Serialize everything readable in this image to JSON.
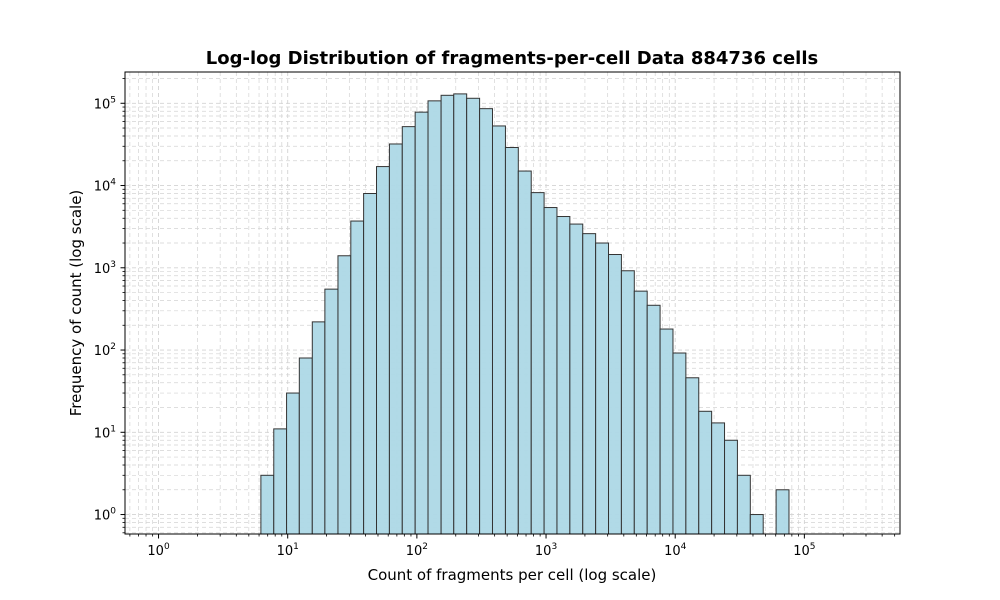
{
  "chart_data": {
    "type": "bar",
    "title": "Log-log Distribution of fragments-per-cell Data 884736 cells",
    "xlabel": "Count of fragments per cell (log scale)",
    "ylabel": "Frequency of count (log scale)",
    "x_scale": "log",
    "y_scale": "log",
    "xlim": [
      0.55,
      550000
    ],
    "ylim": [
      0.58,
      240000
    ],
    "grid": true,
    "x_ticks": [
      {
        "value": 1,
        "base": "10",
        "exp": "0"
      },
      {
        "value": 10,
        "base": "10",
        "exp": "1"
      },
      {
        "value": 100,
        "base": "10",
        "exp": "2"
      },
      {
        "value": 1000,
        "base": "10",
        "exp": "3"
      },
      {
        "value": 10000,
        "base": "10",
        "exp": "4"
      },
      {
        "value": 100000,
        "base": "10",
        "exp": "5"
      }
    ],
    "y_ticks": [
      {
        "value": 1,
        "base": "10",
        "exp": "0"
      },
      {
        "value": 10,
        "base": "10",
        "exp": "1"
      },
      {
        "value": 100,
        "base": "10",
        "exp": "2"
      },
      {
        "value": 1000,
        "base": "10",
        "exp": "3"
      },
      {
        "value": 10000,
        "base": "10",
        "exp": "4"
      },
      {
        "value": 100000,
        "base": "10",
        "exp": "5"
      }
    ],
    "bar_color": "#add8e6",
    "edge_color": "#333333",
    "bins": [
      {
        "x0": 6.2,
        "x1": 7.8,
        "count": 3
      },
      {
        "x0": 7.8,
        "x1": 9.8,
        "count": 11
      },
      {
        "x0": 9.8,
        "x1": 12.3,
        "count": 30
      },
      {
        "x0": 12.3,
        "x1": 15.5,
        "count": 80
      },
      {
        "x0": 15.5,
        "x1": 19.4,
        "count": 220
      },
      {
        "x0": 19.4,
        "x1": 24.5,
        "count": 550
      },
      {
        "x0": 24.5,
        "x1": 30.8,
        "count": 1400
      },
      {
        "x0": 30.8,
        "x1": 38.7,
        "count": 3700
      },
      {
        "x0": 38.7,
        "x1": 48.7,
        "count": 8000
      },
      {
        "x0": 48.7,
        "x1": 61.3,
        "count": 17000
      },
      {
        "x0": 61.3,
        "x1": 77.1,
        "count": 32000
      },
      {
        "x0": 77.1,
        "x1": 97.0,
        "count": 52000
      },
      {
        "x0": 97.0,
        "x1": 122,
        "count": 78000
      },
      {
        "x0": 122,
        "x1": 154,
        "count": 107000
      },
      {
        "x0": 154,
        "x1": 193,
        "count": 125000
      },
      {
        "x0": 193,
        "x1": 243,
        "count": 130000
      },
      {
        "x0": 243,
        "x1": 306,
        "count": 115000
      },
      {
        "x0": 306,
        "x1": 385,
        "count": 86000
      },
      {
        "x0": 385,
        "x1": 485,
        "count": 53000
      },
      {
        "x0": 485,
        "x1": 610,
        "count": 29000
      },
      {
        "x0": 610,
        "x1": 768,
        "count": 15000
      },
      {
        "x0": 768,
        "x1": 966,
        "count": 8200
      },
      {
        "x0": 966,
        "x1": 1215,
        "count": 5400
      },
      {
        "x0": 1215,
        "x1": 1529,
        "count": 4200
      },
      {
        "x0": 1529,
        "x1": 1924,
        "count": 3400
      },
      {
        "x0": 1924,
        "x1": 2421,
        "count": 2600
      },
      {
        "x0": 2421,
        "x1": 3046,
        "count": 2000
      },
      {
        "x0": 3046,
        "x1": 3833,
        "count": 1450
      },
      {
        "x0": 3833,
        "x1": 4823,
        "count": 920
      },
      {
        "x0": 4823,
        "x1": 6069,
        "count": 520
      },
      {
        "x0": 6069,
        "x1": 7637,
        "count": 350
      },
      {
        "x0": 7637,
        "x1": 9610,
        "count": 180
      },
      {
        "x0": 9610,
        "x1": 12093,
        "count": 92
      },
      {
        "x0": 12093,
        "x1": 15217,
        "count": 46
      },
      {
        "x0": 15217,
        "x1": 19148,
        "count": 18
      },
      {
        "x0": 19148,
        "x1": 24094,
        "count": 13
      },
      {
        "x0": 24094,
        "x1": 30318,
        "count": 8
      },
      {
        "x0": 30318,
        "x1": 38150,
        "count": 3
      },
      {
        "x0": 38150,
        "x1": 48005,
        "count": 1
      },
      {
        "x0": 60407,
        "x1": 76012,
        "count": 2
      }
    ]
  }
}
